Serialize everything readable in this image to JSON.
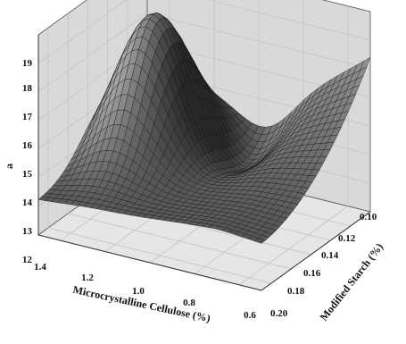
{
  "chart_data": {
    "type": "surface3d",
    "title": "",
    "xlabel": "Microcrystalline Cellulose (%)",
    "ylabel": "Modified Starch (%)",
    "zlabel": "a",
    "x_ticks": [
      "1.4",
      "1.2",
      "1.0",
      "0.8",
      "0.6"
    ],
    "y_ticks": [
      "0.10",
      "0.12",
      "0.14",
      "0.16",
      "0.18",
      "0.20"
    ],
    "z_ticks": [
      "12",
      "13",
      "14",
      "15",
      "16",
      "17",
      "18",
      "19"
    ],
    "xlim": [
      0.5,
      1.5
    ],
    "ylim": [
      0.1,
      0.21
    ],
    "zlim": [
      12,
      19
    ],
    "grid": true,
    "surface_color": "#3c3c3c",
    "mesh_color": "#101010",
    "wall_color": "#d9d9d9",
    "grid_color": "#c4c4c4",
    "corner_samples": [
      {
        "x": 1.5,
        "y": 0.1,
        "z": 16.9
      },
      {
        "x": 1.5,
        "y": 0.21,
        "z": 13.3
      },
      {
        "x": 0.5,
        "y": 0.1,
        "z": 18.1
      },
      {
        "x": 0.5,
        "y": 0.21,
        "z": 12.9
      },
      {
        "x": 1.3,
        "y": 0.14,
        "z": 18.3
      },
      {
        "x": 0.95,
        "y": 0.12,
        "z": 14.6
      },
      {
        "x": 1.0,
        "y": 0.2,
        "z": 14.5
      }
    ]
  }
}
